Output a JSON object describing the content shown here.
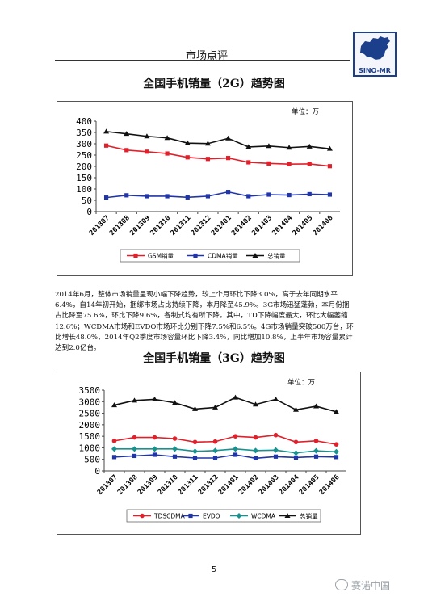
{
  "header": {
    "title": "市场点评",
    "logo_text": "SINO-MR"
  },
  "chart_data": [
    {
      "type": "line",
      "title": "全国手机销量（2G）趋势图",
      "unit_label": "单位：万",
      "categories": [
        "201307",
        "201308",
        "201309",
        "201310",
        "201311",
        "201312",
        "201401",
        "201402",
        "201403",
        "201404",
        "201405",
        "201406"
      ],
      "ylim": [
        0,
        400
      ],
      "yticks": [
        0,
        50,
        100,
        150,
        200,
        250,
        300,
        350,
        400
      ],
      "grid": false,
      "legend_position": "bottom",
      "series": [
        {
          "name": "GSM销量",
          "color": "#e0212b",
          "marker": "square",
          "values": [
            292,
            272,
            265,
            257,
            240,
            233,
            237,
            218,
            213,
            210,
            211,
            201
          ]
        },
        {
          "name": "CDMA销量",
          "color": "#2036a8",
          "marker": "square",
          "values": [
            62,
            72,
            68,
            68,
            63,
            68,
            87,
            68,
            75,
            73,
            77,
            75
          ]
        },
        {
          "name": "总销量",
          "color": "#111111",
          "marker": "triangle",
          "values": [
            354,
            344,
            333,
            326,
            303,
            301,
            324,
            286,
            290,
            283,
            288,
            278
          ]
        }
      ]
    },
    {
      "type": "line",
      "title": "全国手机销量（3G）趋势图",
      "unit_label": "单位：万",
      "categories": [
        "201307",
        "201308",
        "201309",
        "201310",
        "201311",
        "201312",
        "201401",
        "201402",
        "201403",
        "201404",
        "201405",
        "201406"
      ],
      "ylim": [
        0,
        3500
      ],
      "yticks": [
        0,
        500,
        1000,
        1500,
        2000,
        2500,
        3000,
        3500
      ],
      "grid": false,
      "legend_position": "bottom",
      "series": [
        {
          "name": "TDSCDMA",
          "color": "#e0212b",
          "marker": "circle",
          "values": [
            1300,
            1450,
            1450,
            1400,
            1250,
            1270,
            1500,
            1450,
            1550,
            1250,
            1300,
            1150
          ]
        },
        {
          "name": "EVDO",
          "color": "#2036a8",
          "marker": "square",
          "values": [
            600,
            650,
            700,
            620,
            560,
            560,
            700,
            550,
            620,
            580,
            620,
            600
          ]
        },
        {
          "name": "WCDMA",
          "color": "#17928f",
          "marker": "diamond",
          "values": [
            950,
            950,
            950,
            950,
            850,
            880,
            950,
            880,
            900,
            780,
            870,
            830
          ]
        },
        {
          "name": "总销量",
          "color": "#111111",
          "marker": "triangle",
          "values": [
            2850,
            3050,
            3100,
            2950,
            2680,
            2750,
            3180,
            2880,
            3100,
            2650,
            2800,
            2560
          ]
        }
      ]
    }
  ],
  "body_text": "2014年6月，整体市场销量呈现小幅下降趋势，较上个月环比下降3.0%，高于去年同期水平6.4%，自14年初开始，捆绑市场占比持续下降，本月降至45.9%。3G市场迅猛蓬勃，本月份捆占比降至75.6%，环比下降9.6%，各制式均有所下降。其中，TD下降幅度最大，环比大幅萎缩12.6%；WCDMA市场和EVDO市场环比分别下降7.5%和6.5%。4G市场销量突破500万台，环比增长48.0%，2014年Q2季度市场容量环比下降3.4%，同比增加10.8%，上半年市场容量累计达到2.0亿台。",
  "page_number": "5",
  "watermark": "赛诺中国"
}
